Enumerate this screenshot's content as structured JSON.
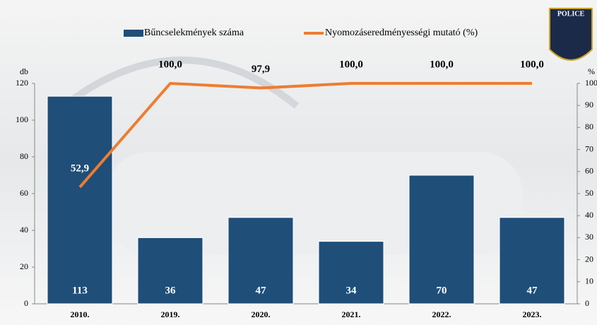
{
  "chart_data": {
    "type": "bar_line",
    "categories": [
      "2010.",
      "2019.",
      "2020.",
      "2021.",
      "2022.",
      "2023."
    ],
    "series": [
      {
        "name": "Bűncselekmények száma",
        "color": "#1f4e79",
        "type": "bar",
        "values": [
          113,
          36,
          47,
          34,
          70,
          47
        ]
      },
      {
        "name": "Nyomozáseredményességi mutató (%)",
        "color": "#ed7d31",
        "type": "line",
        "axis": "y2",
        "values": [
          52.9,
          100,
          97.9,
          100,
          100,
          100
        ],
        "value_labels": [
          "52,9",
          "100,0",
          "97,9",
          "100,0",
          "100,0",
          "100,0"
        ]
      }
    ],
    "ylabel": "db",
    "y2label": "%",
    "ylim": [
      0,
      120
    ],
    "yticks": [
      0,
      20,
      40,
      60,
      80,
      100,
      120
    ],
    "y2lim": [
      0,
      100
    ],
    "y2ticks": [
      0,
      10,
      20,
      30,
      40,
      50,
      60,
      70,
      80,
      90,
      100
    ],
    "badge": "POLICE"
  }
}
